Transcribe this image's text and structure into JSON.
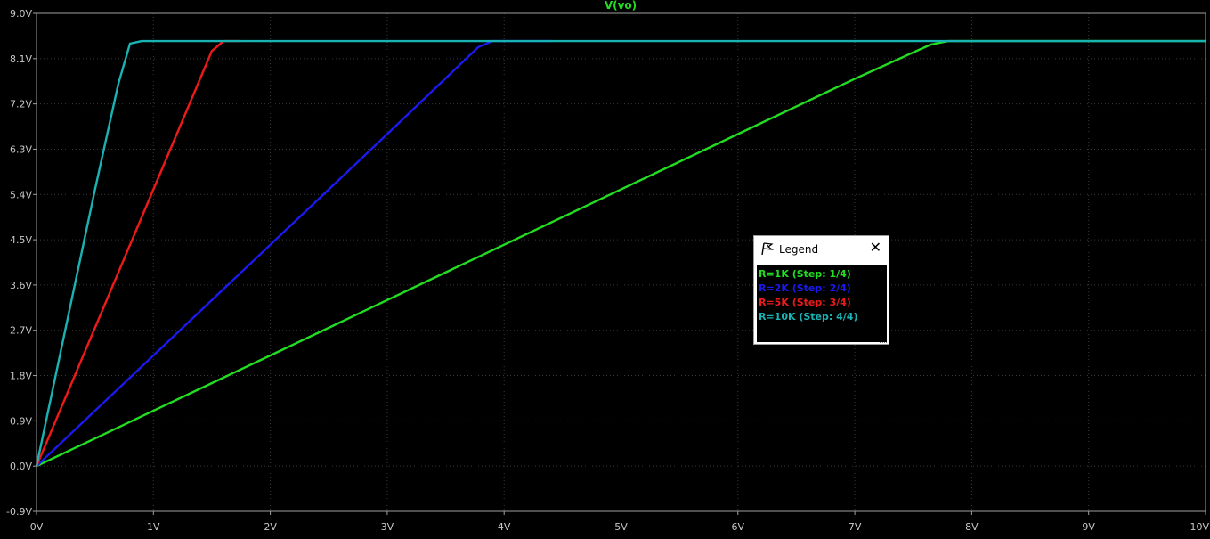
{
  "chart_data": {
    "type": "line",
    "title": "V(vo)",
    "title_color": "#22dd22",
    "xlabel": "",
    "ylabel": "",
    "xlim": [
      0,
      10
    ],
    "ylim": [
      -0.9,
      9.0
    ],
    "x_ticks": [
      {
        "v": 0,
        "label": "0V"
      },
      {
        "v": 1,
        "label": "1V"
      },
      {
        "v": 2,
        "label": "2V"
      },
      {
        "v": 3,
        "label": "3V"
      },
      {
        "v": 4,
        "label": "4V"
      },
      {
        "v": 5,
        "label": "5V"
      },
      {
        "v": 6,
        "label": "6V"
      },
      {
        "v": 7,
        "label": "7V"
      },
      {
        "v": 8,
        "label": "8V"
      },
      {
        "v": 9,
        "label": "9V"
      },
      {
        "v": 10,
        "label": "10V"
      }
    ],
    "y_ticks": [
      {
        "v": -0.9,
        "label": "-0.9V"
      },
      {
        "v": 0.0,
        "label": "0.0V"
      },
      {
        "v": 0.9,
        "label": "0.9V"
      },
      {
        "v": 1.8,
        "label": "1.8V"
      },
      {
        "v": 2.7,
        "label": "2.7V"
      },
      {
        "v": 3.6,
        "label": "3.6V"
      },
      {
        "v": 4.5,
        "label": "4.5V"
      },
      {
        "v": 5.4,
        "label": "5.4V"
      },
      {
        "v": 6.3,
        "label": "6.3V"
      },
      {
        "v": 7.2,
        "label": "7.2V"
      },
      {
        "v": 8.1,
        "label": "8.1V"
      },
      {
        "v": 9.0,
        "label": "9.0V"
      }
    ],
    "grid": true,
    "legend_position": "right-center",
    "series": [
      {
        "name": "R=1K  (Step: 1/4)",
        "color": "#22dd22",
        "points": [
          [
            0,
            0
          ],
          [
            1,
            1.1
          ],
          [
            2,
            2.2
          ],
          [
            3,
            3.3
          ],
          [
            4,
            4.4
          ],
          [
            5,
            5.5
          ],
          [
            6,
            6.6
          ],
          [
            7,
            7.7
          ],
          [
            7.65,
            8.38
          ],
          [
            7.8,
            8.45
          ],
          [
            10,
            8.45
          ]
        ]
      },
      {
        "name": "R=2K  (Step: 2/4)",
        "color": "#1a1aee",
        "points": [
          [
            0,
            0
          ],
          [
            1,
            2.2
          ],
          [
            2,
            4.4
          ],
          [
            3,
            6.6
          ],
          [
            3.78,
            8.33
          ],
          [
            3.9,
            8.45
          ],
          [
            4.4,
            8.45
          ]
        ]
      },
      {
        "name": "R=5K  (Step: 3/4)",
        "color": "#ee1a1a",
        "points": [
          [
            0,
            0
          ],
          [
            0.5,
            2.75
          ],
          [
            1.0,
            5.5
          ],
          [
            1.5,
            8.25
          ],
          [
            1.6,
            8.45
          ],
          [
            1.75,
            8.45
          ]
        ]
      },
      {
        "name": "R=10K  (Step: 4/4)",
        "color": "#1ab3b3",
        "points": [
          [
            0,
            0
          ],
          [
            0.25,
            2.75
          ],
          [
            0.5,
            5.5
          ],
          [
            0.7,
            7.6
          ],
          [
            0.8,
            8.4
          ],
          [
            0.9,
            8.45
          ],
          [
            10,
            8.45
          ]
        ]
      }
    ]
  },
  "legend": {
    "title": "Legend",
    "icon": "probe-flag-icon",
    "close_icon": "close-icon",
    "close_label": "✕"
  }
}
